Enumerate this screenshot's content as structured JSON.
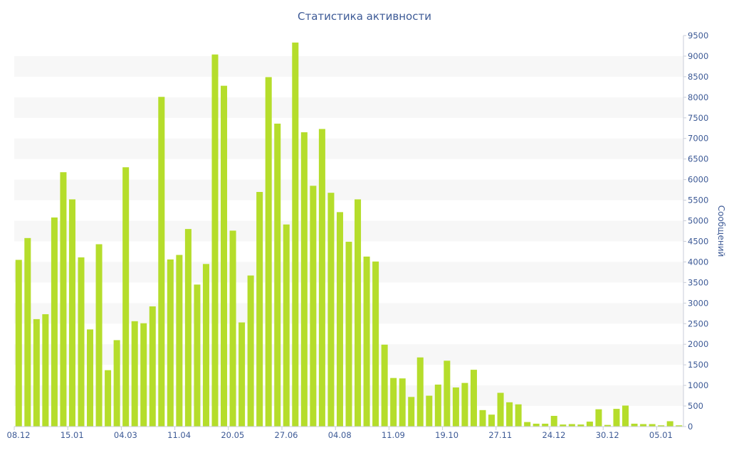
{
  "chart_data": {
    "type": "bar",
    "title": "Статистика активности",
    "ylabel": "Сообщений",
    "xlabel": "",
    "ylim": [
      0,
      9500
    ],
    "y_ticks": [
      0,
      500,
      1000,
      1500,
      2000,
      2500,
      3000,
      3500,
      4000,
      4500,
      5000,
      5500,
      6000,
      6500,
      7000,
      7500,
      8000,
      8500,
      9000,
      9500
    ],
    "y_axis_side": "right",
    "grid": "alternating horizontal bands",
    "x_tick_labels": [
      {
        "index": 0,
        "label": "08.12"
      },
      {
        "index": 6,
        "label": "15.01"
      },
      {
        "index": 12,
        "label": "04.03"
      },
      {
        "index": 18,
        "label": "11.04"
      },
      {
        "index": 24,
        "label": "20.05"
      },
      {
        "index": 30,
        "label": "27.06"
      },
      {
        "index": 36,
        "label": "04.08"
      },
      {
        "index": 42,
        "label": "11.09"
      },
      {
        "index": 48,
        "label": "19.10"
      },
      {
        "index": 54,
        "label": "27.11"
      },
      {
        "index": 60,
        "label": "24.12"
      },
      {
        "index": 66,
        "label": "30.12"
      },
      {
        "index": 72,
        "label": "05.01"
      }
    ],
    "bar_color": "#b5dd2b",
    "values": [
      4050,
      4580,
      2610,
      2730,
      5080,
      6180,
      5520,
      4110,
      2360,
      4430,
      1370,
      2100,
      6300,
      2560,
      2510,
      2920,
      8010,
      4060,
      4170,
      4800,
      3450,
      3950,
      9040,
      8280,
      4760,
      2530,
      3670,
      5700,
      8490,
      7360,
      4910,
      9330,
      7150,
      5850,
      7230,
      5680,
      5210,
      4490,
      5520,
      4130,
      4010,
      1990,
      1180,
      1170,
      720,
      1680,
      750,
      1020,
      1600,
      950,
      1060,
      1380,
      400,
      290,
      820,
      590,
      540,
      110,
      70,
      70,
      260,
      50,
      60,
      50,
      120,
      420,
      40,
      430,
      510,
      70,
      60,
      60,
      30,
      130,
      30
    ]
  }
}
